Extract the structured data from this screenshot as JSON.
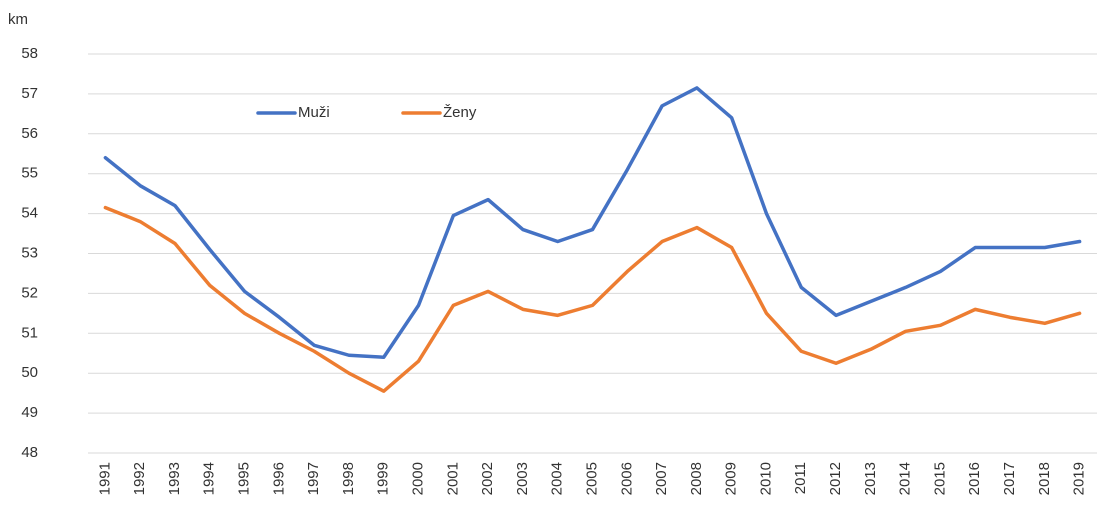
{
  "chart_data": {
    "type": "line",
    "y_label": "km",
    "categories": [
      "1991",
      "1992",
      "1993",
      "1994",
      "1995",
      "1996",
      "1997",
      "1998",
      "1999",
      "2000",
      "2001",
      "2002",
      "2003",
      "2004",
      "2005",
      "2006",
      "2007",
      "2008",
      "2009",
      "2010",
      "2011",
      "2012",
      "2013",
      "2014",
      "2015",
      "2016",
      "2017",
      "2018",
      "2019"
    ],
    "series": [
      {
        "name": "Muži",
        "color": "#4472c4",
        "values": [
          55.4,
          54.7,
          54.2,
          53.1,
          52.05,
          51.4,
          50.7,
          50.45,
          50.4,
          51.7,
          53.95,
          54.35,
          53.6,
          53.3,
          53.6,
          55.1,
          56.7,
          57.15,
          56.4,
          54.0,
          52.15,
          51.45,
          51.8,
          52.15,
          52.55,
          53.15,
          53.15,
          53.15,
          53.3
        ]
      },
      {
        "name": "Ženy",
        "color": "#ed7d31",
        "values": [
          54.15,
          53.8,
          53.25,
          52.2,
          51.5,
          51.0,
          50.55,
          50.0,
          49.55,
          50.3,
          51.7,
          52.05,
          51.6,
          51.45,
          51.7,
          52.55,
          53.3,
          53.65,
          53.15,
          51.5,
          50.55,
          50.25,
          50.6,
          51.05,
          51.2,
          51.6,
          51.4,
          51.25,
          51.5
        ]
      }
    ],
    "ylim": [
      48,
      58
    ],
    "yticks": [
      48,
      49,
      50,
      51,
      52,
      53,
      54,
      55,
      56,
      57,
      58
    ],
    "grid": true
  }
}
